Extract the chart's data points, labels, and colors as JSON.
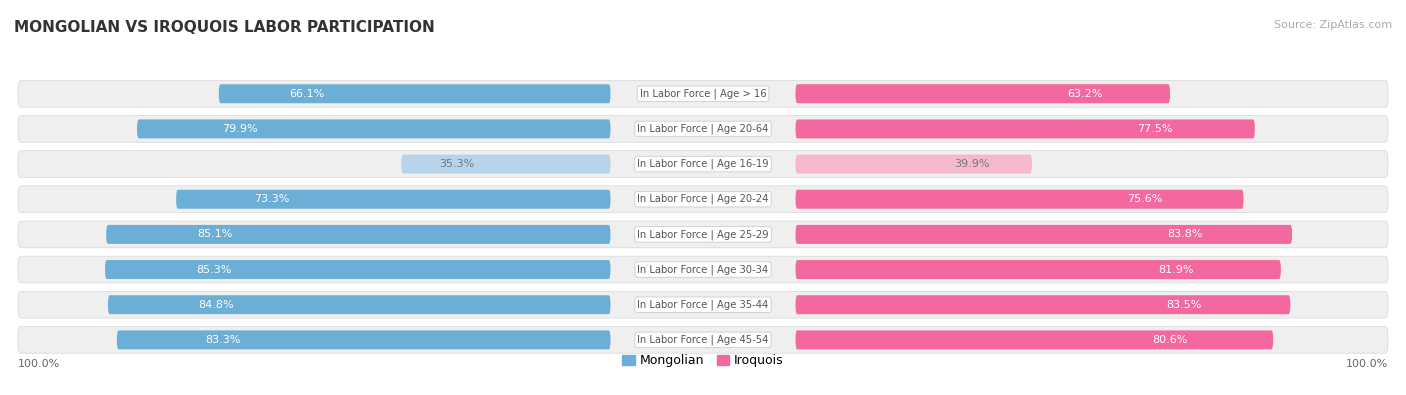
{
  "title": "MONGOLIAN VS IROQUOIS LABOR PARTICIPATION",
  "source": "Source: ZipAtlas.com",
  "categories": [
    "In Labor Force | Age > 16",
    "In Labor Force | Age 20-64",
    "In Labor Force | Age 16-19",
    "In Labor Force | Age 20-24",
    "In Labor Force | Age 25-29",
    "In Labor Force | Age 30-34",
    "In Labor Force | Age 35-44",
    "In Labor Force | Age 45-54"
  ],
  "mongolian_values": [
    66.1,
    79.9,
    35.3,
    73.3,
    85.1,
    85.3,
    84.8,
    83.3
  ],
  "iroquois_values": [
    63.2,
    77.5,
    39.9,
    75.6,
    83.8,
    81.9,
    83.5,
    80.6
  ],
  "mongolian_color": "#6baed6",
  "mongolian_color_light": "#b8d4ea",
  "iroquois_color": "#f468a0",
  "iroquois_color_light": "#f5b8ce",
  "row_bg_color": "#efefef",
  "row_border_color": "#d8d8d8",
  "label_color": "#555555",
  "title_color": "#333333",
  "legend_mongolian": "Mongolian",
  "legend_iroquois": "Iroquois",
  "background_color": "#ffffff",
  "light_threshold": 50
}
